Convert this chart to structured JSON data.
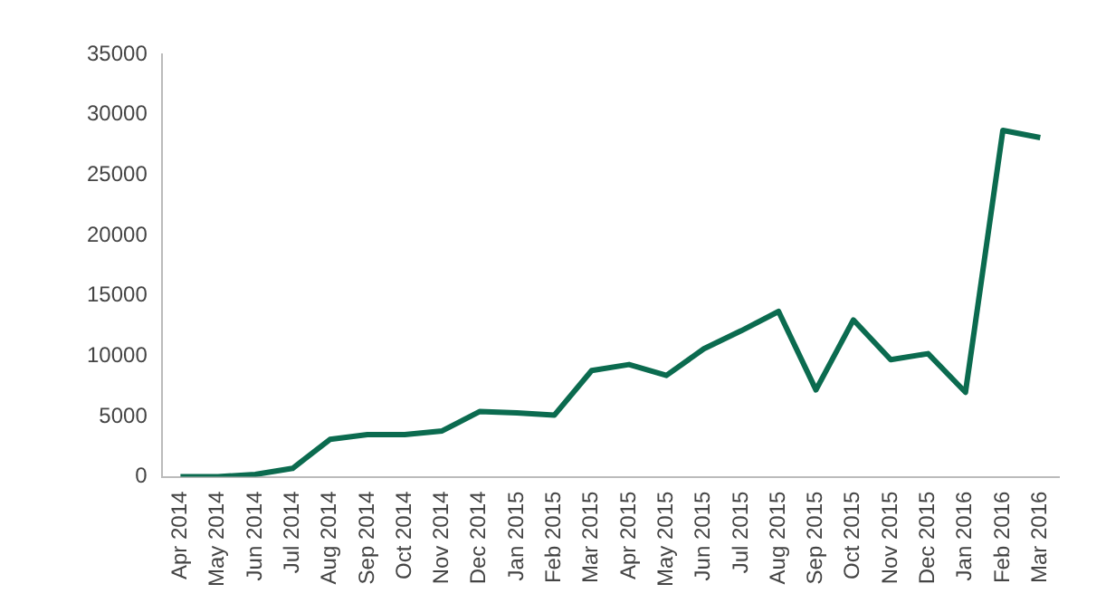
{
  "chart_data": {
    "type": "line",
    "categories": [
      "Apr 2014",
      "May 2014",
      "Jun 2014",
      "Jul 2014",
      "Aug 2014",
      "Sep 2014",
      "Oct 2014",
      "Nov 2014",
      "Dec 2014",
      "Jan 2015",
      "Feb 2015",
      "Mar 2015",
      "Apr 2015",
      "May 2015",
      "Jun 2015",
      "Jul 2015",
      "Aug 2015",
      "Sep 2015",
      "Oct 2015",
      "Nov 2015",
      "Dec 2015",
      "Jan 2016",
      "Feb 2016",
      "Mar 2016"
    ],
    "series": [
      {
        "color": "#0b6b4f",
        "values": [
          0,
          0,
          200,
          700,
          3100,
          3500,
          3500,
          3800,
          5400,
          5300,
          5100,
          8800,
          9300,
          8400,
          10600,
          12100,
          13700,
          7200,
          13000,
          9700,
          10200,
          7000,
          28700,
          28100
        ]
      }
    ],
    "ylim": [
      0,
      35000
    ],
    "yticks": [
      0,
      5000,
      10000,
      15000,
      20000,
      25000,
      30000,
      35000
    ],
    "grid": false,
    "legend": false,
    "marker": "none",
    "line_style": "solid"
  }
}
